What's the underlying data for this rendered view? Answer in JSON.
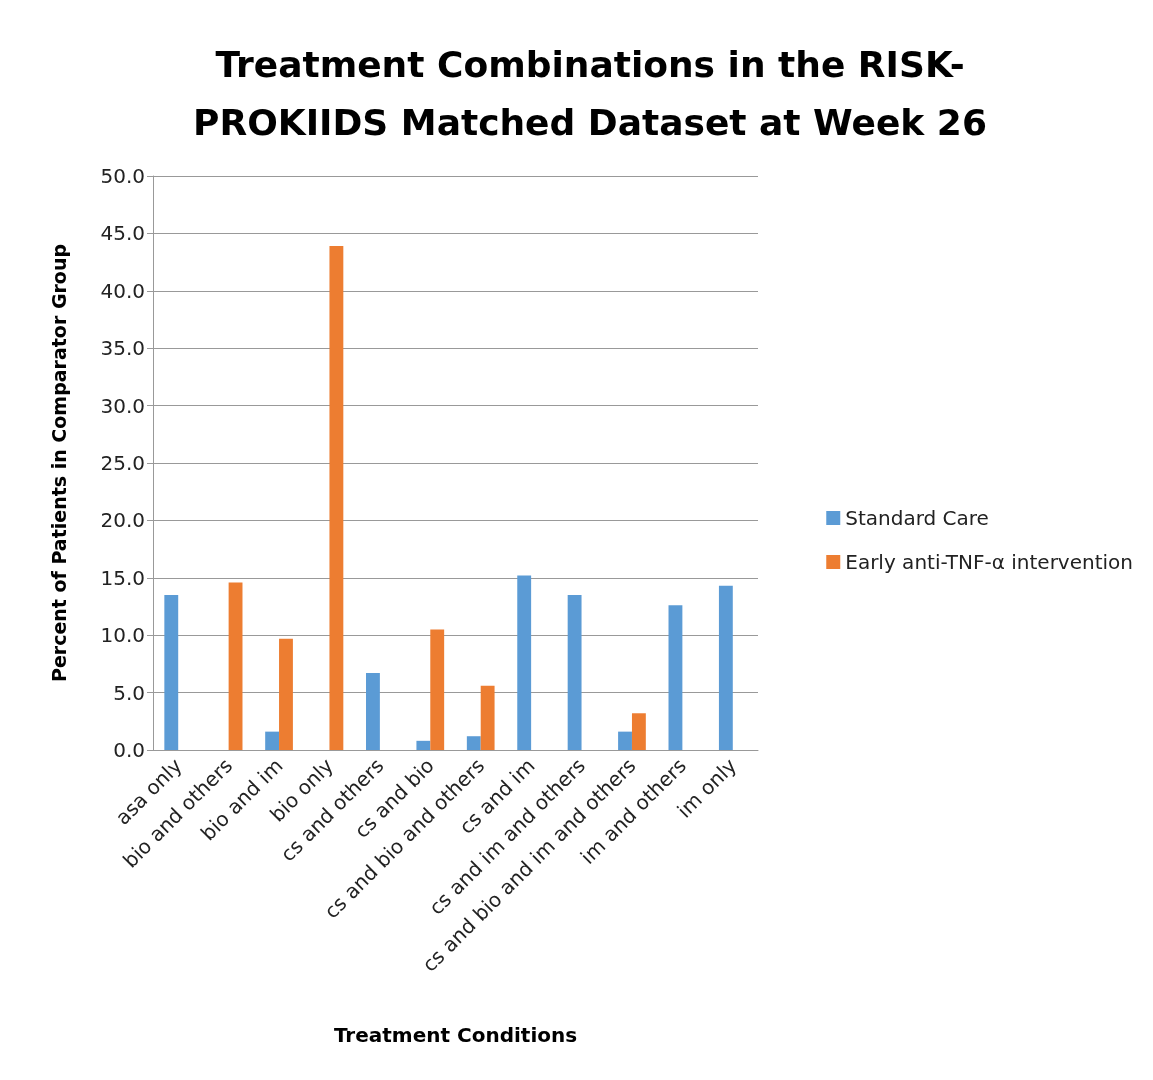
{
  "chart_data": {
    "type": "bar",
    "title": "Treatment Combinations in the RISK-\nPROKIIDS Matched Dataset at Week 26",
    "xlabel": "Treatment Conditions",
    "ylabel": "Percent of Patients in Comparator Group",
    "categories": [
      "asa only",
      "bio and others",
      "bio and im",
      "bio only",
      "cs and others",
      "cs and bio",
      "cs and bio and others",
      "cs and im",
      "cs and im and others",
      "cs and bio and im and others",
      "im and others",
      "im only"
    ],
    "series": [
      {
        "name": "Standard Care",
        "color": "#5b9bd5",
        "values": [
          13.5,
          null,
          1.6,
          null,
          6.7,
          0.8,
          1.2,
          15.2,
          13.5,
          1.6,
          12.6,
          14.3
        ]
      },
      {
        "name": "Early anti-TNF-α intervention",
        "color": "#ed7d31",
        "values": [
          null,
          14.6,
          9.7,
          43.9,
          null,
          10.5,
          5.6,
          null,
          null,
          3.2,
          null,
          null
        ]
      }
    ],
    "ylim": [
      0,
      50
    ],
    "yticks": [
      {
        "value": 0,
        "label": "0.0"
      },
      {
        "value": 5,
        "label": "5.0"
      },
      {
        "value": 10,
        "label": "10.0"
      },
      {
        "value": 15,
        "label": "15.0"
      },
      {
        "value": 20,
        "label": "20.0"
      },
      {
        "value": 25,
        "label": "25.0"
      },
      {
        "value": 30,
        "label": "30.0"
      },
      {
        "value": 35,
        "label": "35.0"
      },
      {
        "value": 40,
        "label": "40.0"
      },
      {
        "value": 45,
        "label": "45.0"
      },
      {
        "value": 50,
        "label": "50.0"
      }
    ],
    "grid": "y",
    "legend": "right"
  }
}
